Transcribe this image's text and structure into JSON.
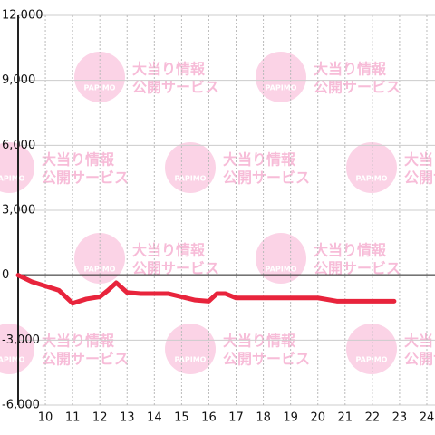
{
  "chart_data": {
    "type": "line",
    "x": [
      9,
      9.5,
      10,
      10.5,
      11,
      11.5,
      12,
      12.3,
      12.6,
      13,
      13.5,
      14,
      14.5,
      15,
      15.5,
      16,
      16.3,
      16.6,
      17,
      18,
      20,
      20.7,
      22.8
    ],
    "series": [
      {
        "color": "#e8243c",
        "values": [
          0,
          -300,
          -500,
          -700,
          -1300,
          -1100,
          -1000,
          -700,
          -350,
          -800,
          -850,
          -850,
          -850,
          -1000,
          -1150,
          -1200,
          -850,
          -850,
          -1050,
          -1050,
          -1050,
          -1200,
          -1200
        ]
      }
    ],
    "xlim": [
      9,
      24.3
    ],
    "xticks": [
      10,
      11,
      12,
      13,
      14,
      15,
      16,
      17,
      18,
      19,
      20,
      21,
      22,
      23,
      24
    ],
    "ylim": [
      -6000,
      12000
    ],
    "yticks": [
      {
        "value": -6000,
        "label": "-6,000"
      },
      {
        "value": -3000,
        "label": "-3,000"
      },
      0,
      {
        "value": 3000,
        "label": "3,000"
      },
      {
        "value": 6000,
        "label": "6,000"
      },
      {
        "value": 9000,
        "label": "9,000"
      },
      {
        "value": 12000,
        "label": "12,000"
      }
    ],
    "grid": true,
    "watermark": {
      "brand": "PAPIMO",
      "line1": "大当り情報",
      "line2": "公開サービス"
    }
  }
}
